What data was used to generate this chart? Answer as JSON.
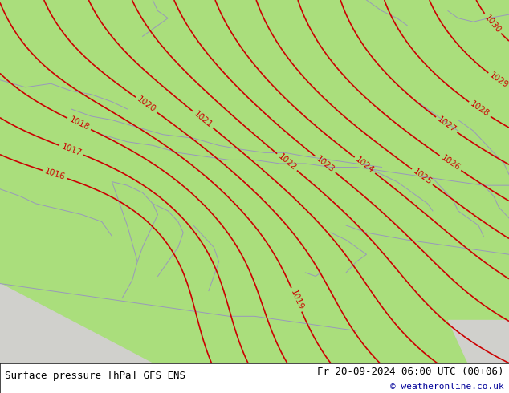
{
  "title_left": "Surface pressure [hPa] GFS ENS",
  "title_right": "Fr 20-09-2024 06:00 UTC (00+06)",
  "credit": "© weatheronline.co.uk",
  "bg_color": "#aade7c",
  "sea_color": "#d0d0cc",
  "contour_color": "#cc0000",
  "coast_color": "#9999bb",
  "contour_linewidth": 1.2,
  "label_fontsize": 7.5,
  "footer_fontsize": 9,
  "pressure_min": 1016,
  "pressure_max": 1031,
  "pressure_step": 1
}
